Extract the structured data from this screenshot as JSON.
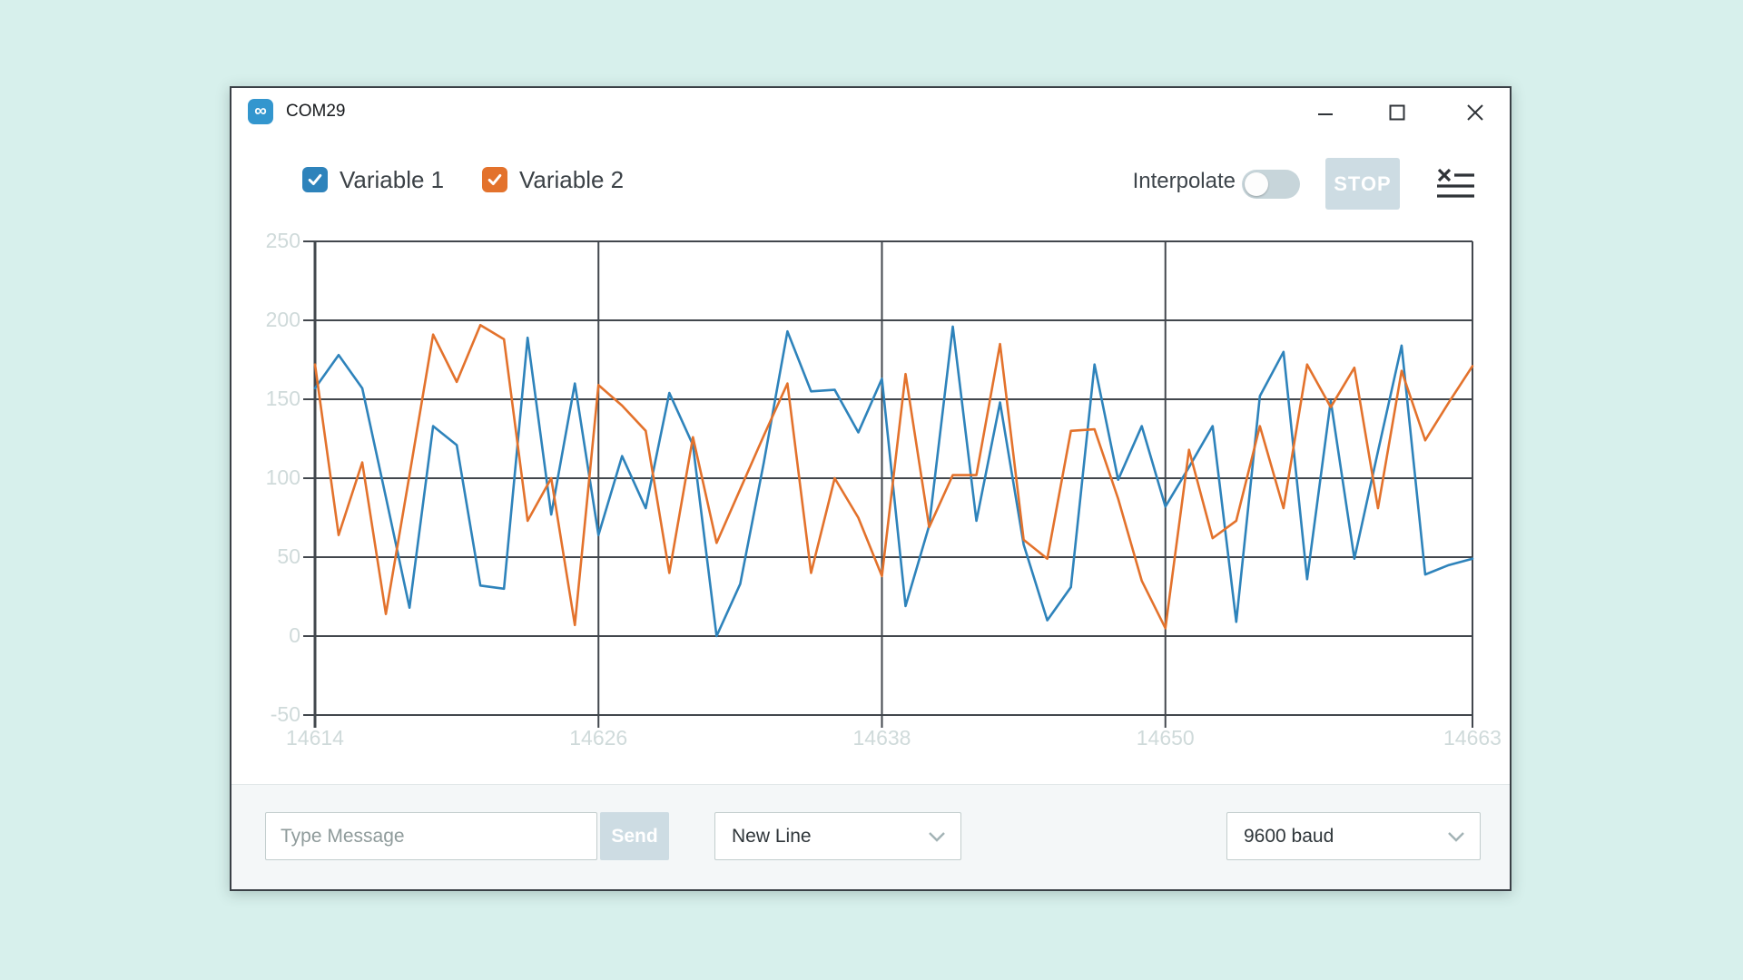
{
  "window": {
    "title": "COM29"
  },
  "legend": [
    {
      "label": "Variable 1",
      "color": "#2e83bb",
      "checked": true
    },
    {
      "label": "Variable 2",
      "color": "#e3722c",
      "checked": true
    }
  ],
  "toolbar": {
    "interpolate_label": "Interpolate",
    "interpolate_on": false,
    "stop_label": "STOP"
  },
  "chart_data": {
    "type": "line",
    "x": [
      14614,
      14615,
      14616,
      14617,
      14618,
      14619,
      14620,
      14621,
      14622,
      14623,
      14624,
      14625,
      14626,
      14627,
      14628,
      14629,
      14630,
      14631,
      14632,
      14633,
      14634,
      14635,
      14636,
      14637,
      14638,
      14639,
      14640,
      14641,
      14642,
      14643,
      14644,
      14645,
      14646,
      14647,
      14648,
      14649,
      14650,
      14651,
      14652,
      14653,
      14654,
      14655,
      14656,
      14657,
      14658,
      14659,
      14660,
      14661,
      14662,
      14663
    ],
    "series": [
      {
        "name": "Variable 1",
        "color": "#2e83bb",
        "values": [
          157,
          178,
          157,
          88,
          18,
          133,
          121,
          32,
          30,
          189,
          77,
          160,
          64,
          114,
          81,
          154,
          121,
          0,
          33,
          110,
          193,
          155,
          156,
          129,
          163,
          19,
          70,
          196,
          73,
          148,
          58,
          10,
          31,
          172,
          99,
          133,
          82,
          107,
          133,
          9,
          152,
          180,
          36,
          149,
          49,
          117,
          184,
          39,
          45,
          49
        ]
      },
      {
        "name": "Variable 2",
        "color": "#e3722c",
        "values": [
          172,
          64,
          110,
          14,
          102,
          191,
          161,
          197,
          188,
          73,
          100,
          7,
          159,
          146,
          130,
          40,
          126,
          59,
          93,
          127,
          160,
          40,
          100,
          75,
          38,
          166,
          69,
          102,
          102,
          185,
          61,
          49,
          130,
          131,
          87,
          35,
          5,
          118,
          62,
          73,
          133,
          81,
          172,
          145,
          170,
          81,
          168,
          124,
          148,
          171
        ]
      }
    ],
    "ylim": [
      -50,
      250
    ],
    "y_ticks": [
      250,
      200,
      150,
      100,
      50,
      0,
      -50
    ],
    "x_tick_positions": [
      14614,
      14626,
      14638,
      14650,
      14663
    ],
    "x_tick_labels": [
      "14614",
      "14626",
      "14638",
      "14650",
      "14663"
    ],
    "grid": true,
    "legend_position": "top-left",
    "title": "",
    "xlabel": "",
    "ylabel": ""
  },
  "message_bar": {
    "placeholder": "Type Message",
    "send_label": "Send",
    "line_ending": "New Line",
    "baud_rate": "9600 baud"
  }
}
